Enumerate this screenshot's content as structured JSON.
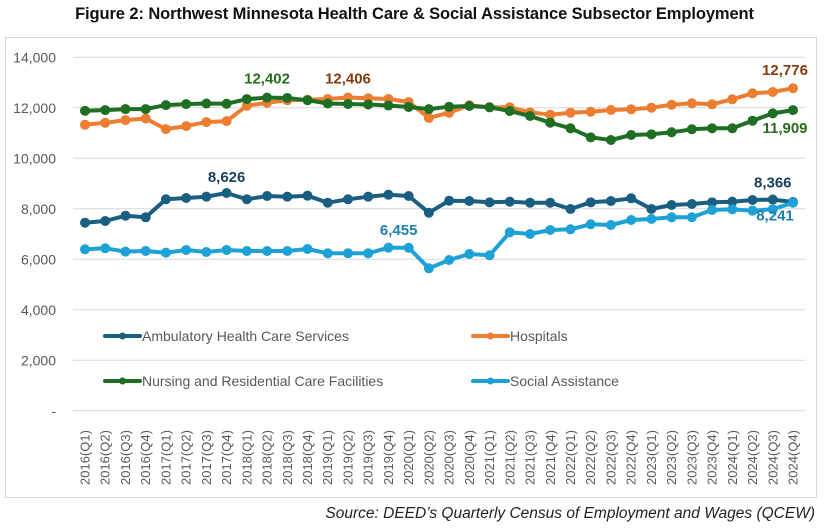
{
  "figure_title": "Figure 2:  Northwest Minnesota Health Care & Social Assistance Subsector Employment",
  "source": "Source:  DEED’s Quarterly Census of Employment and Wages (QCEW)",
  "chart_data": {
    "type": "line",
    "title": "Figure 2:  Northwest Minnesota Health Care & Social Assistance Subsector Employment",
    "xlabel": "",
    "ylabel": "",
    "ylim": [
      0,
      14000
    ],
    "yticks": [
      0,
      2000,
      4000,
      6000,
      8000,
      10000,
      12000,
      14000
    ],
    "ytick_labels": [
      "-",
      "2,000",
      "4,000",
      "6,000",
      "8,000",
      "10,000",
      "12,000",
      "14,000"
    ],
    "grid": true,
    "legend_position": "inside-lower-center",
    "categories": [
      "2016(Q1)",
      "2016(Q2)",
      "2016(Q3)",
      "2016(Q4)",
      "2017(Q1)",
      "2017(Q2)",
      "2017(Q3)",
      "2017(Q4)",
      "2018(Q1)",
      "2018(Q2)",
      "2018(Q3)",
      "2018(Q4)",
      "2019(Q1)",
      "2019(Q2)",
      "2019(Q3)",
      "2019(Q4)",
      "2020(Q1)",
      "2020(Q2)",
      "2020(Q3)",
      "2020(Q4)",
      "2021(Q1)",
      "2021(Q2)",
      "2021(Q3)",
      "2021(Q4)",
      "2022(Q1)",
      "2022(Q2)",
      "2022(Q3)",
      "2022(Q4)",
      "2023(Q1)",
      "2023(Q2)",
      "2023(Q3)",
      "2023(Q4)",
      "2024(Q1)",
      "2024(Q2)",
      "2024(Q3)",
      "2024(Q4)"
    ],
    "series": [
      {
        "name": "Ambulatory Health Care Services",
        "color": "#1a5e82",
        "label_color": "#173f5c",
        "values": [
          7450,
          7517,
          7727,
          7663,
          8376,
          8428,
          8480,
          8626,
          8376,
          8507,
          8480,
          8520,
          8242,
          8376,
          8480,
          8560,
          8507,
          7846,
          8321,
          8309,
          8256,
          8282,
          8242,
          8242,
          7992,
          8256,
          8309,
          8416,
          7992,
          8151,
          8190,
          8256,
          8282,
          8349,
          8366,
          8270
        ],
        "annotations": [
          {
            "index": 7,
            "text": "8,626"
          },
          {
            "index": 34,
            "text": "8,366"
          }
        ]
      },
      {
        "name": "Hospitals",
        "color": "#ed7d31",
        "label_color": "#843c0c",
        "values": [
          11327,
          11406,
          11513,
          11576,
          11156,
          11275,
          11434,
          11473,
          12079,
          12198,
          12300,
          12320,
          12350,
          12406,
          12380,
          12350,
          12230,
          11600,
          11806,
          12099,
          12020,
          12020,
          11820,
          11727,
          11806,
          11846,
          11913,
          11941,
          12004,
          12123,
          12178,
          12139,
          12337,
          12574,
          12626,
          12776
        ],
        "annotations": [
          {
            "index": 13,
            "text": "12,406"
          },
          {
            "index": 35,
            "text": "12,776"
          }
        ]
      },
      {
        "name": "Nursing and Residential Care Facilities",
        "color": "#1e6e23",
        "label_color": "#2a6a1f",
        "values": [
          11880,
          11909,
          11949,
          11949,
          12107,
          12147,
          12170,
          12158,
          12345,
          12402,
          12390,
          12300,
          12170,
          12150,
          12130,
          12090,
          12030,
          11950,
          12044,
          12071,
          12020,
          11873,
          11675,
          11410,
          11188,
          10831,
          10725,
          10923,
          10950,
          11030,
          11149,
          11188,
          11188,
          11489,
          11780,
          11909
        ],
        "annotations": [
          {
            "index": 9,
            "text": "12,402"
          },
          {
            "index": 35,
            "text": "11,909"
          }
        ]
      },
      {
        "name": "Social Assistance",
        "color": "#1da1d6",
        "label_color": "#1f7fb0",
        "values": [
          6396,
          6436,
          6304,
          6330,
          6263,
          6370,
          6290,
          6370,
          6330,
          6330,
          6330,
          6409,
          6238,
          6238,
          6238,
          6461,
          6455,
          5644,
          5972,
          6210,
          6158,
          7069,
          7002,
          7160,
          7188,
          7386,
          7359,
          7557,
          7597,
          7663,
          7663,
          7952,
          7979,
          7926,
          7979,
          8241
        ],
        "annotations": [
          {
            "index": 16,
            "text": "6,455"
          },
          {
            "index": 35,
            "text": "8,241"
          }
        ]
      }
    ]
  }
}
